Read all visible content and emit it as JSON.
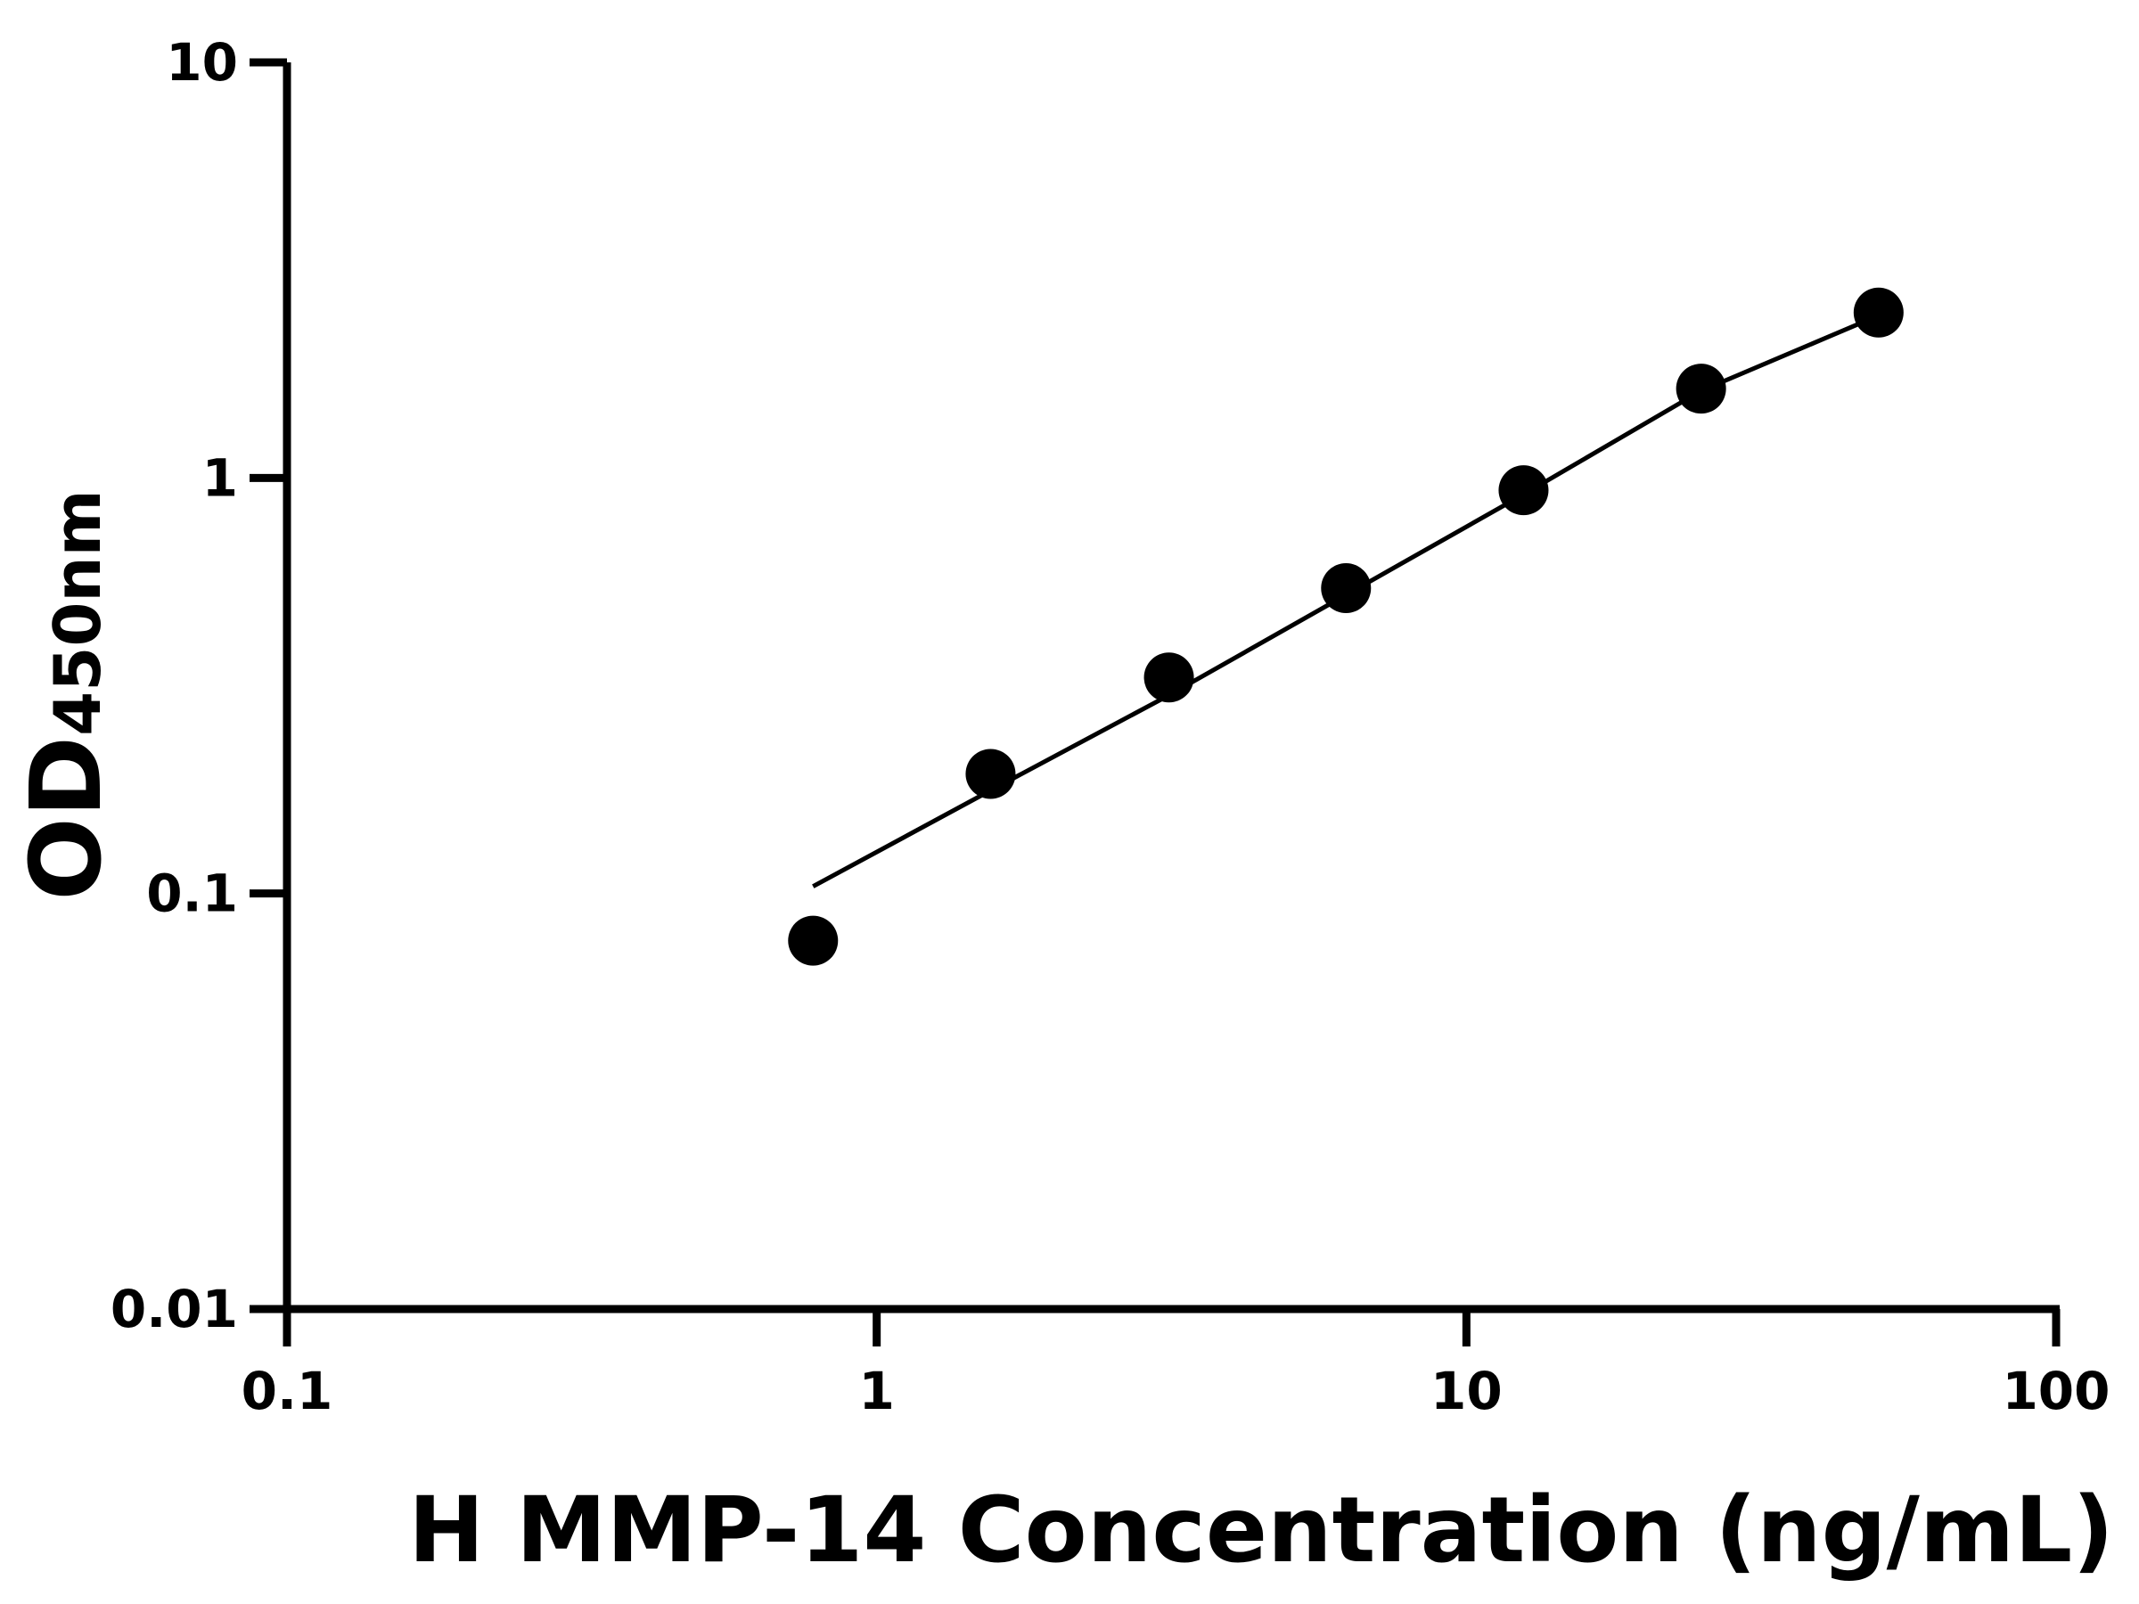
{
  "chart_data": {
    "type": "scatter",
    "x_label": "H MMP-14 Concentration (ng/mL)",
    "y_label": "OD",
    "y_label_subscript": "450nm",
    "x_log": true,
    "y_log": true,
    "xlim": [
      0.1,
      100
    ],
    "xticks": [
      0.1,
      1,
      10,
      100
    ],
    "ylim": [
      0.01,
      10
    ],
    "yticks": [
      0.01,
      0.1,
      1,
      10
    ],
    "series": [
      {
        "x": [
          0.78,
          1.56,
          3.13,
          6.25,
          12.5,
          25,
          50
        ],
        "values": [
          0.077,
          0.194,
          0.331,
          0.543,
          0.934,
          1.64,
          2.5
        ],
        "color": "#000000",
        "marker": "circle"
      },
      {
        "x": [
          0.78,
          1.56,
          3.13,
          6.25,
          12.5,
          25,
          50
        ],
        "values": [
          0.104,
          0.177,
          0.3,
          0.523,
          0.913,
          1.62,
          2.46
        ],
        "color": "#000000",
        "marker": "line"
      }
    ]
  }
}
